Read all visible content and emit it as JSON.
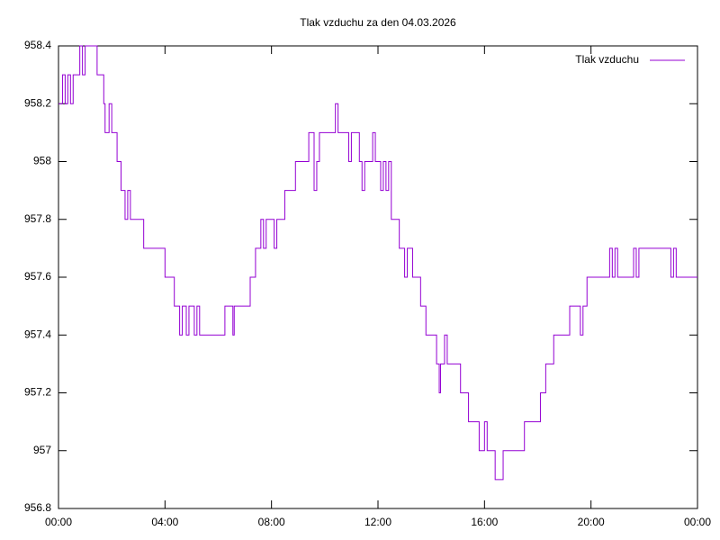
{
  "chart_data": {
    "type": "step",
    "title": "Tlak vzduchu za den 04.03.2026",
    "legend": "top-right",
    "series": [
      {
        "name": "Tlak vzduchu",
        "color": "#9400d3",
        "x": [
          0,
          0.15,
          0.25,
          0.35,
          0.45,
          0.55,
          0.8,
          0.9,
          1.0,
          1.45,
          1.7,
          1.75,
          1.9,
          2.0,
          2.2,
          2.35,
          2.5,
          2.6,
          2.7,
          3.1,
          3.2,
          4.0,
          4.1,
          4.35,
          4.55,
          4.65,
          4.8,
          4.9,
          5.1,
          5.2,
          5.3,
          6.2,
          6.25,
          6.55,
          6.6,
          7.1,
          7.2,
          7.4,
          7.6,
          7.7,
          7.8,
          8.1,
          8.2,
          8.3,
          8.5,
          8.9,
          9.4,
          9.6,
          9.7,
          9.8,
          10.4,
          10.5,
          10.9,
          11.0,
          11.3,
          11.4,
          11.5,
          11.8,
          11.9,
          12.1,
          12.2,
          12.3,
          12.4,
          12.5,
          12.8,
          13.0,
          13.1,
          13.3,
          13.6,
          13.8,
          14.2,
          14.3,
          14.35,
          14.5,
          14.6,
          15.0,
          15.1,
          15.4,
          15.8,
          16.0,
          16.1,
          16.4,
          16.7,
          17.5,
          18.1,
          18.3,
          18.6,
          19.2,
          19.6,
          19.7,
          19.85,
          20.7,
          20.8,
          20.9,
          21.0,
          21.6,
          21.7,
          21.8,
          21.9,
          23.0,
          23.1,
          23.2,
          23.4,
          24.0
        ],
        "values": [
          958.2,
          958.3,
          958.2,
          958.3,
          958.2,
          958.3,
          958.4,
          958.3,
          958.4,
          958.3,
          958.2,
          958.1,
          958.2,
          958.1,
          958.0,
          957.9,
          957.8,
          957.9,
          957.8,
          957.8,
          957.7,
          957.6,
          957.6,
          957.5,
          957.4,
          957.5,
          957.4,
          957.5,
          957.4,
          957.5,
          957.4,
          957.4,
          957.5,
          957.4,
          957.5,
          957.5,
          957.6,
          957.7,
          957.8,
          957.7,
          957.8,
          957.7,
          957.8,
          957.8,
          957.9,
          958.0,
          958.1,
          957.9,
          958.0,
          958.1,
          958.2,
          958.1,
          958.0,
          958.1,
          958.0,
          957.9,
          958.0,
          958.1,
          958.0,
          957.9,
          958.0,
          957.9,
          958.0,
          957.8,
          957.7,
          957.6,
          957.7,
          957.6,
          957.5,
          957.4,
          957.3,
          957.2,
          957.3,
          957.4,
          957.3,
          957.3,
          957.2,
          957.1,
          957.0,
          957.1,
          957.0,
          956.9,
          957.0,
          957.1,
          957.2,
          957.3,
          957.4,
          957.5,
          957.4,
          957.5,
          957.6,
          957.7,
          957.6,
          957.7,
          957.6,
          957.7,
          957.6,
          957.7,
          957.7,
          957.6,
          957.7,
          957.6,
          957.6,
          957.6
        ]
      }
    ],
    "xlim": [
      0,
      24
    ],
    "xticks": [
      {
        "value": 0,
        "label": "00:00"
      },
      {
        "value": 4,
        "label": "04:00"
      },
      {
        "value": 8,
        "label": "08:00"
      },
      {
        "value": 12,
        "label": "12:00"
      },
      {
        "value": 16,
        "label": "16:00"
      },
      {
        "value": 20,
        "label": "20:00"
      },
      {
        "value": 24,
        "label": "00:00"
      }
    ],
    "ylim": [
      956.8,
      958.4
    ],
    "yticks": [
      956.8,
      957,
      957.2,
      957.4,
      957.6,
      957.8,
      958,
      958.2,
      958.4
    ]
  }
}
